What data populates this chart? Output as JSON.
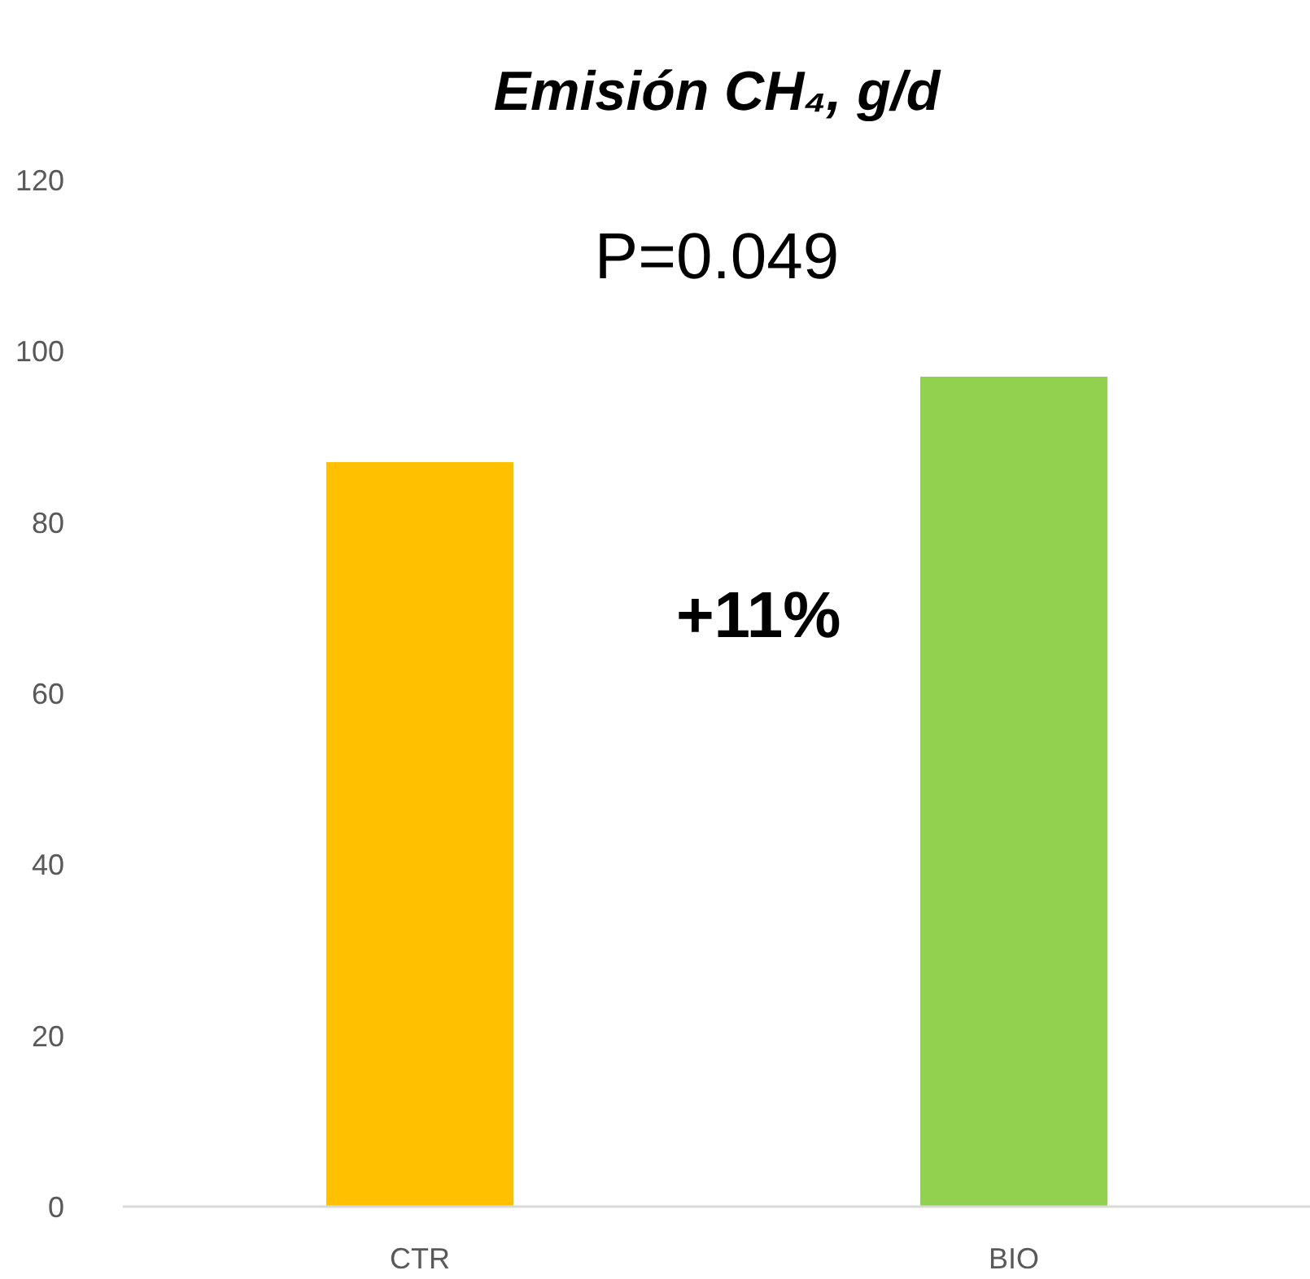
{
  "chart_data": {
    "type": "bar",
    "title": "Emisión CH₄, g/d",
    "categories": [
      "CTR",
      "BIO"
    ],
    "values": [
      87,
      97
    ],
    "colors": [
      "#ffc000",
      "#92d050"
    ],
    "ylim": [
      0,
      120
    ],
    "yticks": [
      0,
      20,
      40,
      60,
      80,
      100,
      120
    ],
    "grid": false,
    "annotations": [
      "P=0.049",
      "+11%"
    ]
  }
}
